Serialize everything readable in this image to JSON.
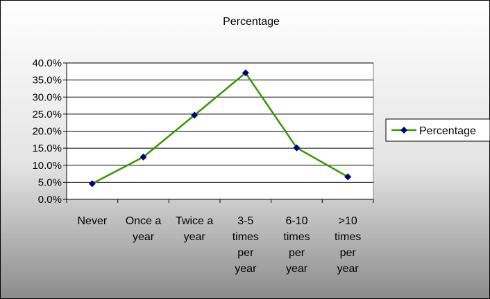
{
  "chart_data": {
    "type": "line",
    "title": "Percentage",
    "categories": [
      [
        "Never"
      ],
      [
        "Once a",
        "year"
      ],
      [
        "Twice a",
        "year"
      ],
      [
        "3-5",
        "times",
        "per",
        "year"
      ],
      [
        "6-10",
        "times",
        "per",
        "year"
      ],
      [
        ">10",
        "times",
        "per",
        "year"
      ]
    ],
    "series": [
      {
        "name": "Percentage",
        "values": [
          0.046,
          0.124,
          0.247,
          0.371,
          0.151,
          0.066
        ]
      }
    ],
    "ylim": [
      0,
      0.4
    ],
    "yticks": [
      0,
      0.05,
      0.1,
      0.15,
      0.2,
      0.25,
      0.3,
      0.35,
      0.4
    ],
    "ytick_labels": [
      "0.0%",
      "5.0%",
      "10.0%",
      "15.0%",
      "20.0%",
      "25.0%",
      "30.0%",
      "35.0%",
      "40.0%"
    ],
    "grid": true,
    "legend_position": "right",
    "colors": {
      "line": "#339900",
      "marker": "#000080",
      "plot_bg": "#ffffff"
    }
  }
}
